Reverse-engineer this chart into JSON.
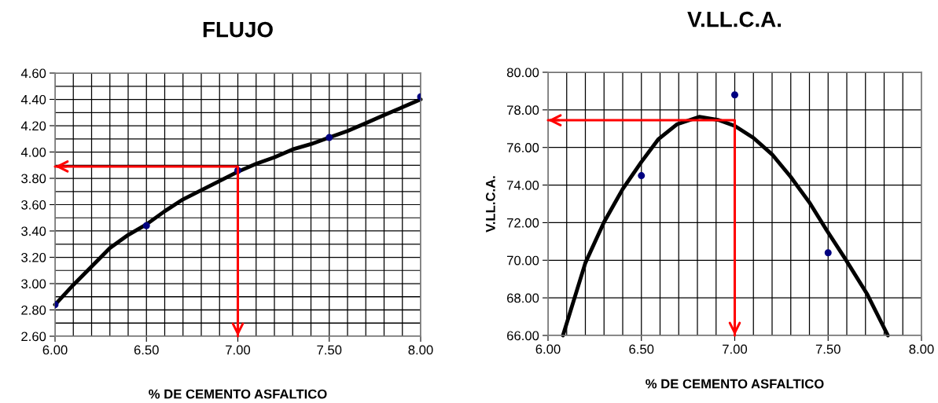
{
  "chart_data": [
    {
      "type": "scatter",
      "title": "FLUJO",
      "xlabel": "% DE CEMENTO ASFALTICO",
      "grid": true,
      "x": [
        6.0,
        6.5,
        7.0,
        7.5,
        8.0
      ],
      "series": [
        {
          "color": "#000080",
          "marker": "circle",
          "values": [
            2.84,
            3.44,
            3.86,
            4.11,
            4.42
          ]
        },
        {
          "type": "line",
          "color": "#000000",
          "marker": "none",
          "x": [
            6.0,
            6.1,
            6.2,
            6.3,
            6.4,
            6.5,
            6.6,
            6.7,
            6.8,
            6.9,
            7.0,
            7.1,
            7.2,
            7.3,
            7.4,
            7.5,
            7.6,
            7.7,
            7.8,
            7.9,
            8.0
          ],
          "values": [
            2.84,
            2.99,
            3.13,
            3.27,
            3.37,
            3.45,
            3.55,
            3.64,
            3.71,
            3.78,
            3.85,
            3.91,
            3.96,
            4.02,
            4.06,
            4.11,
            4.16,
            4.22,
            4.28,
            4.34,
            4.4
          ]
        },
        {
          "type": "line",
          "color": "#ff0000",
          "marker": "none",
          "x": [
            6.0,
            7.0,
            7.0
          ],
          "values": [
            3.89,
            3.89,
            2.6
          ]
        }
      ],
      "xlim": [
        6.0,
        8.0
      ],
      "ylim": [
        2.6,
        4.6
      ],
      "xticks": [
        {
          "value": 6.0,
          "label": "6.00"
        },
        {
          "value": 6.1,
          "label": null
        },
        {
          "value": 6.2,
          "label": null
        },
        {
          "value": 6.3,
          "label": null
        },
        {
          "value": 6.4,
          "label": null
        },
        {
          "value": 6.5,
          "label": "6.50"
        },
        {
          "value": 6.6,
          "label": null
        },
        {
          "value": 6.7,
          "label": null
        },
        {
          "value": 6.8,
          "label": null
        },
        {
          "value": 6.9,
          "label": null
        },
        {
          "value": 7.0,
          "label": "7.00"
        },
        {
          "value": 7.1,
          "label": null
        },
        {
          "value": 7.2,
          "label": null
        },
        {
          "value": 7.3,
          "label": null
        },
        {
          "value": 7.4,
          "label": null
        },
        {
          "value": 7.5,
          "label": "7.50"
        },
        {
          "value": 7.6,
          "label": null
        },
        {
          "value": 7.7,
          "label": null
        },
        {
          "value": 7.8,
          "label": null
        },
        {
          "value": 7.9,
          "label": null
        },
        {
          "value": 8.0,
          "label": "8.00"
        }
      ],
      "yticks": [
        {
          "value": 2.6,
          "label": "2.60"
        },
        {
          "value": 2.7,
          "label": null
        },
        {
          "value": 2.8,
          "label": "2.80"
        },
        {
          "value": 2.9,
          "label": null
        },
        {
          "value": 3.0,
          "label": "3.00"
        },
        {
          "value": 3.1,
          "label": null
        },
        {
          "value": 3.2,
          "label": "3.20"
        },
        {
          "value": 3.3,
          "label": null
        },
        {
          "value": 3.4,
          "label": "3.40"
        },
        {
          "value": 3.5,
          "label": null
        },
        {
          "value": 3.6,
          "label": "3.60"
        },
        {
          "value": 3.7,
          "label": null
        },
        {
          "value": 3.8,
          "label": "3.80"
        },
        {
          "value": 3.9,
          "label": null
        },
        {
          "value": 4.0,
          "label": "4.00"
        },
        {
          "value": 4.1,
          "label": null
        },
        {
          "value": 4.2,
          "label": "4.20"
        },
        {
          "value": 4.3,
          "label": null
        },
        {
          "value": 4.4,
          "label": "4.40"
        },
        {
          "value": 4.5,
          "label": null
        },
        {
          "value": 4.6,
          "label": "4.60"
        }
      ]
    },
    {
      "type": "scatter",
      "title": "V.LL.C.A.",
      "xlabel": "% DE CEMENTO ASFALTICO",
      "ylabel": "V.LL.C.A.",
      "grid": true,
      "x": [
        6.5,
        7.0,
        7.5
      ],
      "series": [
        {
          "color": "#000080",
          "marker": "circle",
          "values": [
            74.5,
            78.8,
            70.4
          ]
        },
        {
          "type": "line",
          "color": "#000000",
          "marker": "none",
          "x": [
            6.08,
            6.2,
            6.3,
            6.4,
            6.5,
            6.59,
            6.69,
            6.81,
            6.91,
            7.0,
            7.1,
            7.2,
            7.3,
            7.4,
            7.49,
            7.59,
            7.71,
            7.82
          ],
          "values": [
            66.0,
            69.86,
            72.03,
            73.79,
            75.23,
            76.43,
            77.23,
            77.63,
            77.47,
            77.15,
            76.51,
            75.63,
            74.43,
            73.07,
            71.63,
            70.1,
            68.18,
            66.0
          ]
        },
        {
          "type": "line",
          "color": "#ff0000",
          "marker": "none",
          "x": [
            6.0,
            7.0,
            7.0
          ],
          "values": [
            77.45,
            77.45,
            66.0
          ]
        }
      ],
      "xlim": [
        6.0,
        8.0
      ],
      "ylim": [
        66.0,
        80.0
      ],
      "xticks": [
        {
          "value": 6.0,
          "label": "6.00"
        },
        {
          "value": 6.1,
          "label": null
        },
        {
          "value": 6.2,
          "label": null
        },
        {
          "value": 6.3,
          "label": null
        },
        {
          "value": 6.4,
          "label": null
        },
        {
          "value": 6.5,
          "label": "6.50"
        },
        {
          "value": 6.6,
          "label": null
        },
        {
          "value": 6.7,
          "label": null
        },
        {
          "value": 6.8,
          "label": null
        },
        {
          "value": 6.9,
          "label": null
        },
        {
          "value": 7.0,
          "label": "7.00"
        },
        {
          "value": 7.1,
          "label": null
        },
        {
          "value": 7.2,
          "label": null
        },
        {
          "value": 7.3,
          "label": null
        },
        {
          "value": 7.4,
          "label": null
        },
        {
          "value": 7.5,
          "label": "7.50"
        },
        {
          "value": 7.6,
          "label": null
        },
        {
          "value": 7.7,
          "label": null
        },
        {
          "value": 7.8,
          "label": null
        },
        {
          "value": 7.9,
          "label": null
        },
        {
          "value": 8.0,
          "label": "8.00"
        }
      ],
      "yticks": [
        {
          "value": 66.0,
          "label": "66.00"
        },
        {
          "value": 68.0,
          "label": "68.00"
        },
        {
          "value": 70.0,
          "label": "70.00"
        },
        {
          "value": 72.0,
          "label": "72.00"
        },
        {
          "value": 74.0,
          "label": "74.00"
        },
        {
          "value": 76.0,
          "label": "76.00"
        },
        {
          "value": 78.0,
          "label": "78.00"
        },
        {
          "value": 80.0,
          "label": "80.00"
        }
      ]
    }
  ]
}
